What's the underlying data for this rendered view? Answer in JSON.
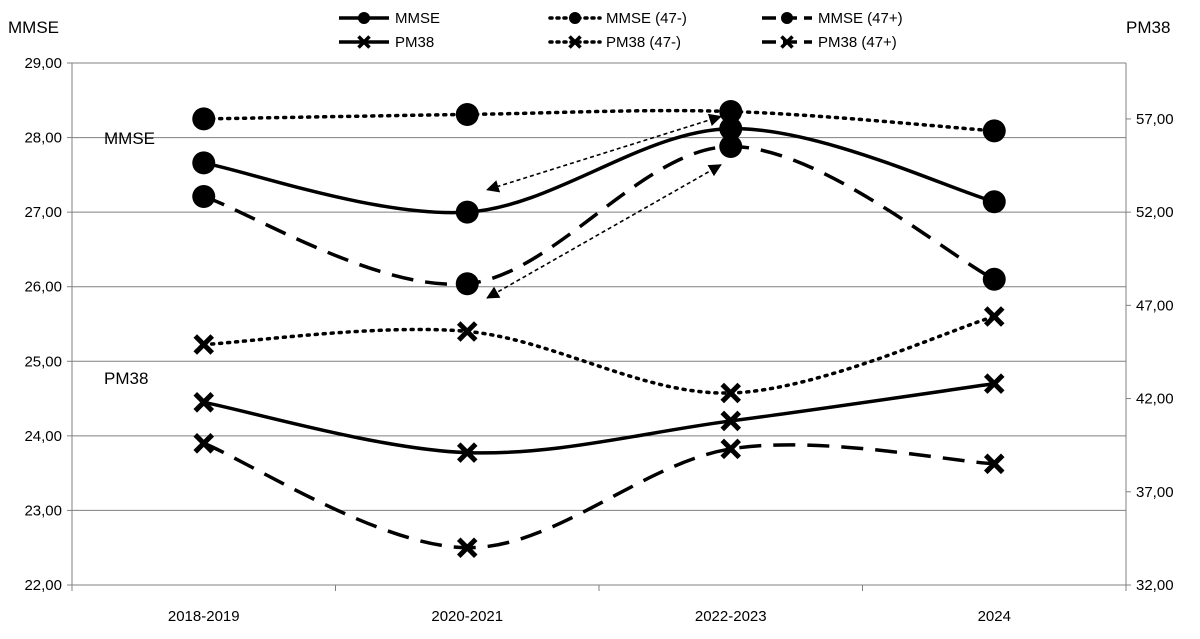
{
  "chart_data": {
    "type": "line",
    "categories": [
      "2018-2019",
      "2020-2021",
      "2022-2023",
      "2024"
    ],
    "left_axis": {
      "title": "MMSE",
      "range": [
        22,
        29
      ],
      "ticks": [
        "22,00",
        "23,00",
        "24,00",
        "25,00",
        "26,00",
        "27,00",
        "28,00",
        "29,00"
      ]
    },
    "right_axis": {
      "title": "PM38",
      "range": [
        32,
        60
      ],
      "ticks": [
        "32,00",
        "37,00",
        "42,00",
        "47,00",
        "52,00",
        "57,00"
      ]
    },
    "grid": true,
    "legend_position": "top",
    "series": [
      {
        "name": "MMSE",
        "axis": "left",
        "marker": "circle",
        "style": "solid",
        "values": [
          27.66,
          27.0,
          28.12,
          27.14
        ]
      },
      {
        "name": "MMSE (47-)",
        "axis": "left",
        "marker": "circle",
        "style": "dotted",
        "values": [
          28.25,
          28.31,
          28.35,
          28.09
        ]
      },
      {
        "name": "MMSE (47+)",
        "axis": "left",
        "marker": "circle",
        "style": "dashed",
        "values": [
          27.21,
          26.04,
          27.88,
          26.1
        ]
      },
      {
        "name": "PM38",
        "axis": "right",
        "marker": "x",
        "style": "solid",
        "values": [
          41.8,
          39.1,
          40.8,
          42.8
        ]
      },
      {
        "name": "PM38 (47-)",
        "axis": "right",
        "marker": "x",
        "style": "dotted",
        "values": [
          44.9,
          45.6,
          42.3,
          46.4
        ]
      },
      {
        "name": "PM38 (47+)",
        "axis": "right",
        "marker": "x",
        "style": "dashed",
        "values": [
          39.6,
          34.0,
          39.3,
          38.5
        ]
      }
    ],
    "annotations": {
      "mmse_label": "MMSE",
      "pm38_label": "PM38",
      "arrows": [
        {
          "from_category": 2,
          "from_value": 28.35,
          "to_category": 1,
          "to_value": 27.3
        },
        {
          "from_category": 2,
          "from_value": 27.7,
          "to_category": 1,
          "to_value": 25.85
        }
      ]
    }
  }
}
